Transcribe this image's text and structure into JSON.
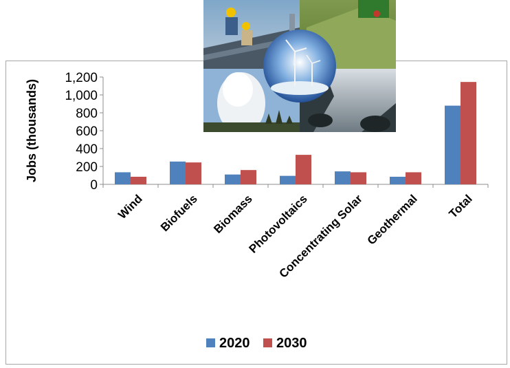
{
  "chart_data": {
    "type": "bar",
    "categories": [
      "Wind",
      "Biofuels",
      "Biomass",
      "Photovoltaics",
      "Concentrating Solar",
      "Geothermal",
      "Total"
    ],
    "series": [
      {
        "name": "2020",
        "color": "#4f81bd",
        "values": [
          135,
          255,
          110,
          95,
          145,
          85,
          880
        ]
      },
      {
        "name": "2030",
        "color": "#c0504d",
        "values": [
          85,
          245,
          160,
          330,
          135,
          135,
          1145
        ]
      }
    ],
    "title": "",
    "xlabel": "",
    "ylabel": "Jobs (thousands)",
    "ylim": [
      0,
      1200
    ],
    "yticks": [
      0,
      200,
      400,
      600,
      800,
      1000,
      1200
    ],
    "ytick_labels": [
      "0",
      "200",
      "400",
      "600",
      "800",
      "1,000",
      "1,200"
    ],
    "grid": false,
    "legend_position": "bottom"
  },
  "image": {
    "description": "photo collage: solar panel installers, hay harvest, wind turbines, geyser, waterfall",
    "icon": "renewable-energy-collage"
  }
}
